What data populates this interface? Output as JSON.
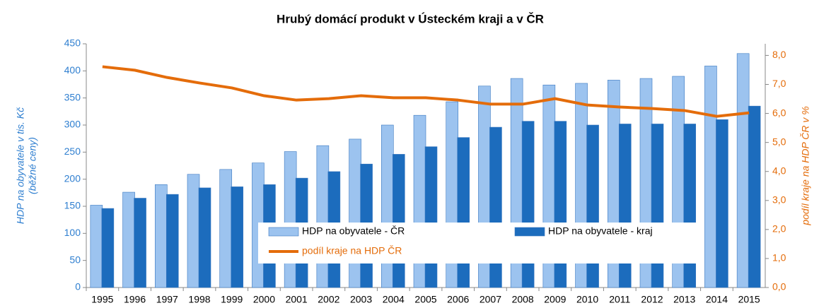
{
  "chart_data": {
    "type": "bar_line",
    "title": "Hrubý domácí produkt v Ústeckém  kraji a v ČR",
    "ylabel": [
      "HDP na obyvatele v tis. Kč",
      "(běžné ceny)"
    ],
    "y2label": "podíl kraje na HDP ČR v %",
    "categories": [
      "1995",
      "1996",
      "1997",
      "1998",
      "1999",
      "2000",
      "2001",
      "2002",
      "2003",
      "2004",
      "2005",
      "2006",
      "2007",
      "2008",
      "2009",
      "2010",
      "2011",
      "2012",
      "2013",
      "2014",
      "2015"
    ],
    "series": [
      {
        "name": "HDP na obyvatele - ČR",
        "type": "bar",
        "color": "#9cc3ef",
        "values": [
          152,
          176,
          190,
          209,
          218,
          230,
          251,
          262,
          274,
          300,
          318,
          343,
          372,
          386,
          374,
          377,
          383,
          386,
          390,
          409,
          432
        ]
      },
      {
        "name": "HDP na obyvatele - kraj",
        "type": "bar",
        "color": "#1c6cbd",
        "values": [
          146,
          165,
          172,
          184,
          186,
          190,
          202,
          214,
          228,
          246,
          260,
          277,
          296,
          307,
          307,
          300,
          302,
          302,
          302,
          310,
          335
        ]
      },
      {
        "name": "podíl kraje na HDP ČR",
        "type": "line",
        "axis": "y2",
        "color": "#e46c0a",
        "values": [
          7.61,
          7.49,
          7.24,
          7.05,
          6.88,
          6.61,
          6.46,
          6.51,
          6.61,
          6.54,
          6.54,
          6.46,
          6.32,
          6.32,
          6.51,
          6.29,
          6.22,
          6.17,
          6.1,
          5.9,
          6.02
        ]
      }
    ],
    "ylim": [
      0,
      450
    ],
    "yticks": [
      0,
      50,
      100,
      150,
      200,
      250,
      300,
      350,
      400,
      450
    ],
    "y2lim": [
      0,
      8.4
    ],
    "y2ticks": [
      {
        "value": 0,
        "label": "0,0"
      },
      {
        "value": 1,
        "label": "1,0"
      },
      {
        "value": 2,
        "label": "2,0"
      },
      {
        "value": 3,
        "label": "3,0"
      },
      {
        "value": 4,
        "label": "4,0"
      },
      {
        "value": 5,
        "label": "5,0"
      },
      {
        "value": 6,
        "label": "6,0"
      },
      {
        "value": 7,
        "label": "7,0"
      },
      {
        "value": 8,
        "label": "8,0"
      }
    ],
    "grid": false,
    "legend": "bottom"
  }
}
